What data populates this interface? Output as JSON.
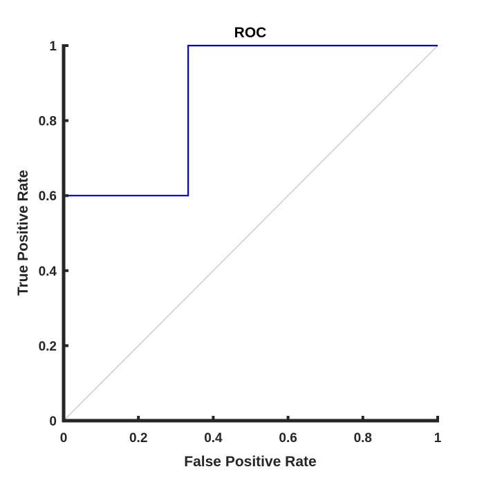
{
  "chart_data": {
    "type": "line",
    "title": "ROC",
    "xlabel": "False Positive Rate",
    "ylabel": "True Positive Rate",
    "xlim": [
      0,
      1
    ],
    "ylim": [
      0,
      1
    ],
    "grid": false,
    "x_ticks": [
      0,
      0.2,
      0.4,
      0.6,
      0.8,
      1
    ],
    "y_ticks": [
      0,
      0.2,
      0.4,
      0.6,
      0.8,
      1
    ],
    "x_tick_labels": [
      "0",
      "0.2",
      "0.4",
      "0.6",
      "0.8",
      "1"
    ],
    "y_tick_labels": [
      "0",
      "0.2",
      "0.4",
      "0.6",
      "0.8",
      "1"
    ],
    "series": [
      {
        "x": [
          0,
          0,
          0.333,
          0.333,
          1
        ],
        "y": [
          0,
          0.6,
          0.6,
          1,
          1
        ],
        "color": "#0000c0"
      },
      {
        "x": [
          0,
          1
        ],
        "y": [
          0,
          1
        ],
        "color": "#cccccc"
      }
    ]
  },
  "colors": {
    "axis": "#262626",
    "background": "#ffffff"
  }
}
